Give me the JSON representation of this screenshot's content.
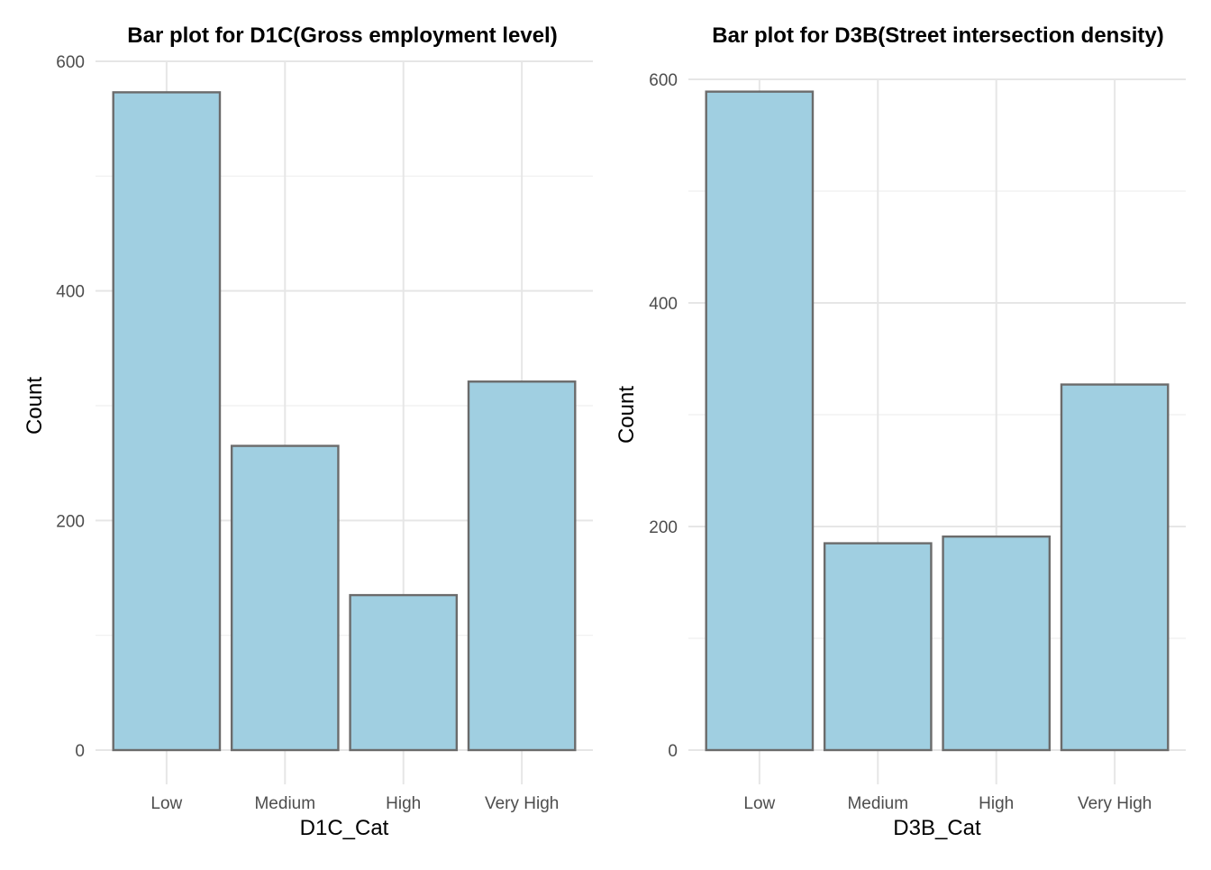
{
  "chart_data": [
    {
      "type": "bar",
      "title": "Bar plot for D1C(Gross employment level)",
      "xlabel": "D1C_Cat",
      "ylabel": "Count",
      "categories": [
        "Low",
        "Medium",
        "High",
        "Very High"
      ],
      "values": [
        573,
        265,
        135,
        321
      ],
      "ylim": [
        0,
        600
      ],
      "yticks": [
        "0",
        "200",
        "400",
        "600"
      ],
      "grid": true,
      "bar_fill": "#a0cfe1",
      "bar_stroke": "#6b6b6b"
    },
    {
      "type": "bar",
      "title": "Bar plot for D3B(Street intersection density)",
      "xlabel": "D3B_Cat",
      "ylabel": "Count",
      "categories": [
        "Low",
        "Medium",
        "High",
        "Very High"
      ],
      "values": [
        589,
        185,
        191,
        327
      ],
      "ylim": [
        0,
        600
      ],
      "yticks": [
        "0",
        "200",
        "400",
        "600"
      ],
      "grid": true,
      "bar_fill": "#a0cfe1",
      "bar_stroke": "#6b6b6b"
    }
  ]
}
